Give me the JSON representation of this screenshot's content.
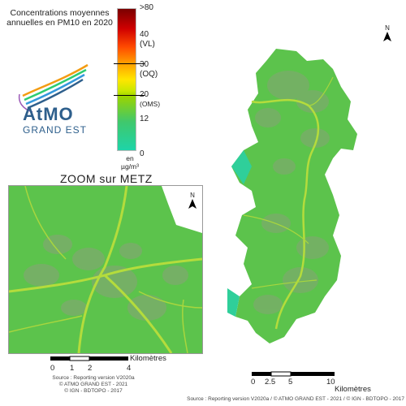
{
  "legend": {
    "title_line1": "Concentrations moyennes",
    "title_line2": "annuelles en PM10 en 2020",
    "ticks": {
      "t80": ">80",
      "t40": "40",
      "vl": "(VL)",
      "t30": "30",
      "oq": "(OQ)",
      "t20": "20",
      "oms": "(OMS)",
      "t12": "12",
      "t0": "0"
    },
    "unit_line1": "en",
    "unit_line2": "µg/m³",
    "colors": {
      "max": "#7a0000",
      "mid": "#ffe600",
      "low": "#3fc86d",
      "min": "#1ed4a8"
    }
  },
  "logo": {
    "name": "AtMO",
    "sub": "GRAND EST"
  },
  "zoom": {
    "title": "ZOOM sur METZ",
    "north": "N",
    "scale": {
      "label": "Kilomètres",
      "ticks": [
        "0",
        "1",
        "2",
        "4"
      ]
    },
    "source_line1": "Source : Reporting version V2020a",
    "source_line2": "© ATMO GRAND EST - 2021",
    "source_line3": "© IGN - BDTOPO - 2017"
  },
  "main_map": {
    "north": "N",
    "scale": {
      "label": "Kilomètres",
      "ticks": [
        "0",
        "2.5",
        "5",
        "10"
      ]
    },
    "source": "Source : Reporting version V2020a / © ATMO GRAND EST - 2021 / © IGN - BDTOPO - 2017",
    "fill_color": "#5cc34c",
    "road_color": "#b4dc3c"
  }
}
